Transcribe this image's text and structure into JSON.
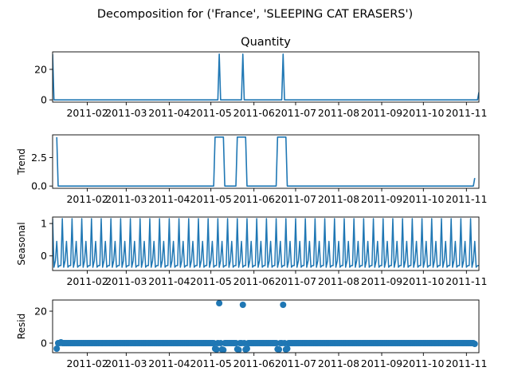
{
  "figure": {
    "suptitle": "Decomposition for ('France', 'SLEEPING CAT ERASERS')"
  },
  "chart_data": [
    {
      "type": "line",
      "title": "Quantity",
      "ylabel": "",
      "xlim": [
        "2011-01-07",
        "2011-11-10"
      ],
      "ylim": [
        -1.5,
        31.5
      ],
      "yticks": [
        0,
        20
      ],
      "xticks": [
        "2011-02",
        "2011-03",
        "2011-04",
        "2011-05",
        "2011-06",
        "2011-07",
        "2011-08",
        "2011-09",
        "2011-10",
        "2011-11"
      ],
      "color": "#1f77b4",
      "x": [
        "2011-01-07",
        "2011-01-08",
        "2011-05-06",
        "2011-05-07",
        "2011-05-08",
        "2011-05-23",
        "2011-05-24",
        "2011-05-25",
        "2011-06-21",
        "2011-06-22",
        "2011-06-23",
        "2011-11-09",
        "2011-11-10"
      ],
      "y": [
        30,
        0,
        0,
        30,
        0,
        0,
        30,
        0,
        0,
        30,
        0,
        0,
        5
      ]
    },
    {
      "type": "line",
      "title": "",
      "ylabel": "Trend",
      "xlim": [
        "2011-01-07",
        "2011-11-10"
      ],
      "ylim": [
        -0.2,
        4.5
      ],
      "yticks": [
        0.0,
        2.5
      ],
      "ytick_labels": [
        "0.0",
        "2.5"
      ],
      "xticks": [
        "2011-02",
        "2011-03",
        "2011-04",
        "2011-05",
        "2011-06",
        "2011-07",
        "2011-08",
        "2011-09",
        "2011-10",
        "2011-11"
      ],
      "color": "#1f77b4",
      "x": [
        "2011-01-10",
        "2011-01-11",
        "2011-05-03",
        "2011-05-04",
        "2011-05-10",
        "2011-05-11",
        "2011-05-19",
        "2011-05-20",
        "2011-05-26",
        "2011-05-27",
        "2011-06-17",
        "2011-06-18",
        "2011-06-24",
        "2011-06-25",
        "2011-11-06",
        "2011-11-07"
      ],
      "y": [
        4.3,
        0,
        0,
        4.3,
        4.3,
        0,
        0,
        4.3,
        4.3,
        0,
        0,
        4.3,
        4.3,
        0,
        0,
        0.7
      ]
    },
    {
      "type": "line",
      "title": "",
      "ylabel": "Seasonal",
      "xlim": [
        "2011-01-07",
        "2011-11-10"
      ],
      "ylim": [
        -0.45,
        1.2
      ],
      "yticks": [
        0,
        1
      ],
      "xticks": [
        "2011-02",
        "2011-03",
        "2011-04",
        "2011-05",
        "2011-06",
        "2011-07",
        "2011-08",
        "2011-09",
        "2011-10",
        "2011-11"
      ],
      "color": "#1f77b4",
      "period_days": 7,
      "start": "2011-01-07",
      "end": "2011-11-10",
      "pattern": [
        1.15,
        -0.35,
        -0.15,
        0.45,
        -0.35,
        -0.3,
        -0.3
      ]
    },
    {
      "type": "scatter",
      "title": "",
      "ylabel": "Resid",
      "xlim": [
        "2011-01-07",
        "2011-11-10"
      ],
      "ylim": [
        -6,
        27
      ],
      "yticks": [
        0,
        20
      ],
      "xticks": [
        "2011-02",
        "2011-03",
        "2011-04",
        "2011-05",
        "2011-06",
        "2011-07",
        "2011-08",
        "2011-09",
        "2011-10",
        "2011-11"
      ],
      "color": "#1f77b4",
      "baseline_start": "2011-01-10",
      "baseline_end": "2011-11-07",
      "baseline_value": 0,
      "points": [
        {
          "x": "2011-01-10",
          "y": -3.5
        },
        {
          "x": "2011-01-13",
          "y": 0.5
        },
        {
          "x": "2011-05-04",
          "y": -3.5
        },
        {
          "x": "2011-05-05",
          "y": -4
        },
        {
          "x": "2011-05-07",
          "y": 25
        },
        {
          "x": "2011-05-09",
          "y": -4
        },
        {
          "x": "2011-05-10",
          "y": -4.3
        },
        {
          "x": "2011-05-20",
          "y": -3.8
        },
        {
          "x": "2011-05-21",
          "y": -4.2
        },
        {
          "x": "2011-05-24",
          "y": 24
        },
        {
          "x": "2011-05-26",
          "y": -4
        },
        {
          "x": "2011-05-27",
          "y": -3.5
        },
        {
          "x": "2011-06-18",
          "y": -3.8
        },
        {
          "x": "2011-06-19",
          "y": -4
        },
        {
          "x": "2011-06-22",
          "y": 24
        },
        {
          "x": "2011-06-24",
          "y": -4
        },
        {
          "x": "2011-06-25",
          "y": -3.5
        },
        {
          "x": "2011-11-07",
          "y": -0.5
        }
      ]
    }
  ]
}
